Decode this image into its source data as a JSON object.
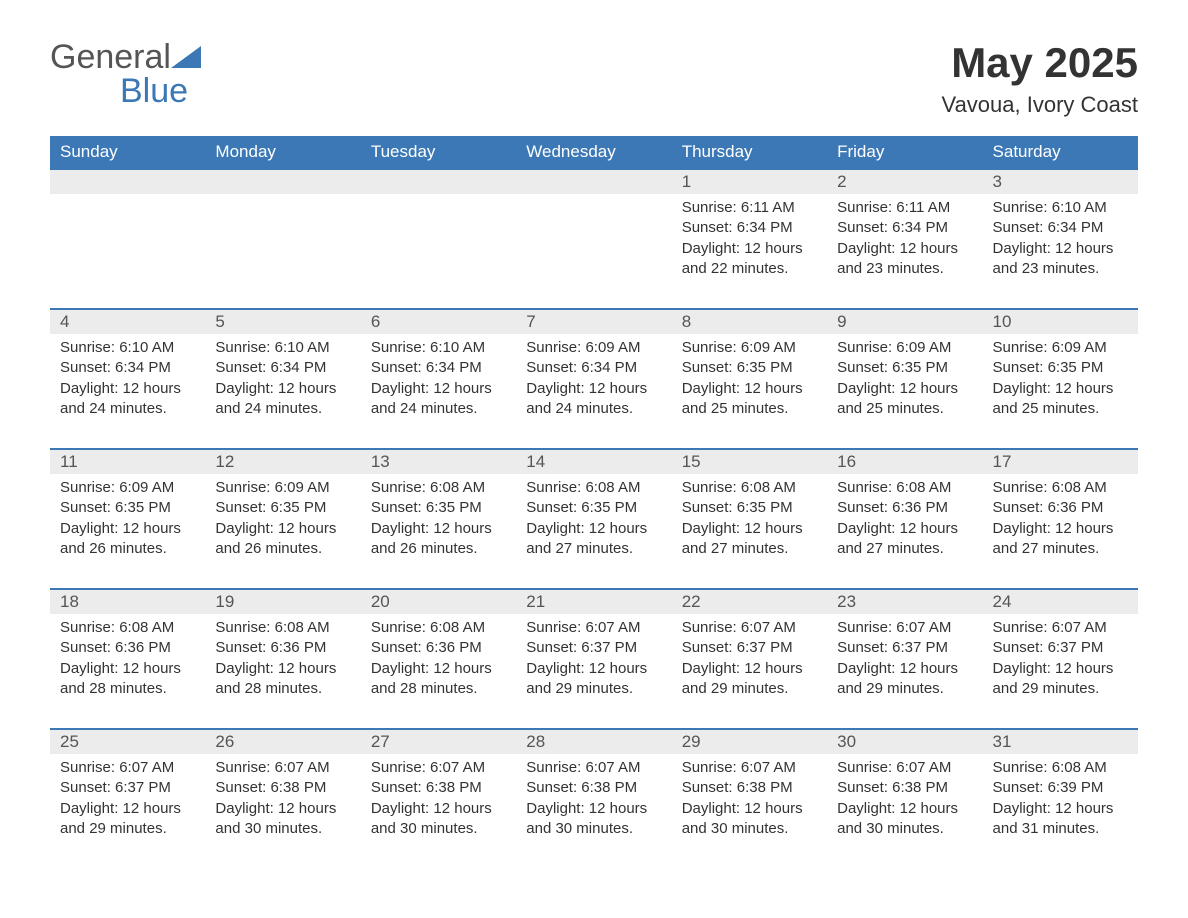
{
  "logo": {
    "text1": "General",
    "text2": "Blue"
  },
  "title": "May 2025",
  "location": "Vavoua, Ivory Coast",
  "colors": {
    "header_bg": "#3b78b5",
    "header_text": "#ffffff",
    "daynum_bg": "#ececec",
    "row_border": "#3b78b5",
    "body_text": "#333333",
    "logo_gray": "#555555",
    "logo_blue": "#3b78b5",
    "page_bg": "#ffffff"
  },
  "typography": {
    "title_fontsize": 42,
    "location_fontsize": 22,
    "header_fontsize": 17,
    "daynum_fontsize": 17,
    "body_fontsize": 15,
    "font_family": "Arial"
  },
  "layout": {
    "columns": 7,
    "rows": 5,
    "lead_blank_cells": 4
  },
  "weekdays": [
    "Sunday",
    "Monday",
    "Tuesday",
    "Wednesday",
    "Thursday",
    "Friday",
    "Saturday"
  ],
  "days": [
    {
      "n": 1,
      "sunrise": "6:11 AM",
      "sunset": "6:34 PM",
      "daylight": "12 hours and 22 minutes."
    },
    {
      "n": 2,
      "sunrise": "6:11 AM",
      "sunset": "6:34 PM",
      "daylight": "12 hours and 23 minutes."
    },
    {
      "n": 3,
      "sunrise": "6:10 AM",
      "sunset": "6:34 PM",
      "daylight": "12 hours and 23 minutes."
    },
    {
      "n": 4,
      "sunrise": "6:10 AM",
      "sunset": "6:34 PM",
      "daylight": "12 hours and 24 minutes."
    },
    {
      "n": 5,
      "sunrise": "6:10 AM",
      "sunset": "6:34 PM",
      "daylight": "12 hours and 24 minutes."
    },
    {
      "n": 6,
      "sunrise": "6:10 AM",
      "sunset": "6:34 PM",
      "daylight": "12 hours and 24 minutes."
    },
    {
      "n": 7,
      "sunrise": "6:09 AM",
      "sunset": "6:34 PM",
      "daylight": "12 hours and 24 minutes."
    },
    {
      "n": 8,
      "sunrise": "6:09 AM",
      "sunset": "6:35 PM",
      "daylight": "12 hours and 25 minutes."
    },
    {
      "n": 9,
      "sunrise": "6:09 AM",
      "sunset": "6:35 PM",
      "daylight": "12 hours and 25 minutes."
    },
    {
      "n": 10,
      "sunrise": "6:09 AM",
      "sunset": "6:35 PM",
      "daylight": "12 hours and 25 minutes."
    },
    {
      "n": 11,
      "sunrise": "6:09 AM",
      "sunset": "6:35 PM",
      "daylight": "12 hours and 26 minutes."
    },
    {
      "n": 12,
      "sunrise": "6:09 AM",
      "sunset": "6:35 PM",
      "daylight": "12 hours and 26 minutes."
    },
    {
      "n": 13,
      "sunrise": "6:08 AM",
      "sunset": "6:35 PM",
      "daylight": "12 hours and 26 minutes."
    },
    {
      "n": 14,
      "sunrise": "6:08 AM",
      "sunset": "6:35 PM",
      "daylight": "12 hours and 27 minutes."
    },
    {
      "n": 15,
      "sunrise": "6:08 AM",
      "sunset": "6:35 PM",
      "daylight": "12 hours and 27 minutes."
    },
    {
      "n": 16,
      "sunrise": "6:08 AM",
      "sunset": "6:36 PM",
      "daylight": "12 hours and 27 minutes."
    },
    {
      "n": 17,
      "sunrise": "6:08 AM",
      "sunset": "6:36 PM",
      "daylight": "12 hours and 27 minutes."
    },
    {
      "n": 18,
      "sunrise": "6:08 AM",
      "sunset": "6:36 PM",
      "daylight": "12 hours and 28 minutes."
    },
    {
      "n": 19,
      "sunrise": "6:08 AM",
      "sunset": "6:36 PM",
      "daylight": "12 hours and 28 minutes."
    },
    {
      "n": 20,
      "sunrise": "6:08 AM",
      "sunset": "6:36 PM",
      "daylight": "12 hours and 28 minutes."
    },
    {
      "n": 21,
      "sunrise": "6:07 AM",
      "sunset": "6:37 PM",
      "daylight": "12 hours and 29 minutes."
    },
    {
      "n": 22,
      "sunrise": "6:07 AM",
      "sunset": "6:37 PM",
      "daylight": "12 hours and 29 minutes."
    },
    {
      "n": 23,
      "sunrise": "6:07 AM",
      "sunset": "6:37 PM",
      "daylight": "12 hours and 29 minutes."
    },
    {
      "n": 24,
      "sunrise": "6:07 AM",
      "sunset": "6:37 PM",
      "daylight": "12 hours and 29 minutes."
    },
    {
      "n": 25,
      "sunrise": "6:07 AM",
      "sunset": "6:37 PM",
      "daylight": "12 hours and 29 minutes."
    },
    {
      "n": 26,
      "sunrise": "6:07 AM",
      "sunset": "6:38 PM",
      "daylight": "12 hours and 30 minutes."
    },
    {
      "n": 27,
      "sunrise": "6:07 AM",
      "sunset": "6:38 PM",
      "daylight": "12 hours and 30 minutes."
    },
    {
      "n": 28,
      "sunrise": "6:07 AM",
      "sunset": "6:38 PM",
      "daylight": "12 hours and 30 minutes."
    },
    {
      "n": 29,
      "sunrise": "6:07 AM",
      "sunset": "6:38 PM",
      "daylight": "12 hours and 30 minutes."
    },
    {
      "n": 30,
      "sunrise": "6:07 AM",
      "sunset": "6:38 PM",
      "daylight": "12 hours and 30 minutes."
    },
    {
      "n": 31,
      "sunrise": "6:08 AM",
      "sunset": "6:39 PM",
      "daylight": "12 hours and 31 minutes."
    }
  ],
  "labels": {
    "sunrise": "Sunrise: ",
    "sunset": "Sunset: ",
    "daylight": "Daylight: "
  }
}
